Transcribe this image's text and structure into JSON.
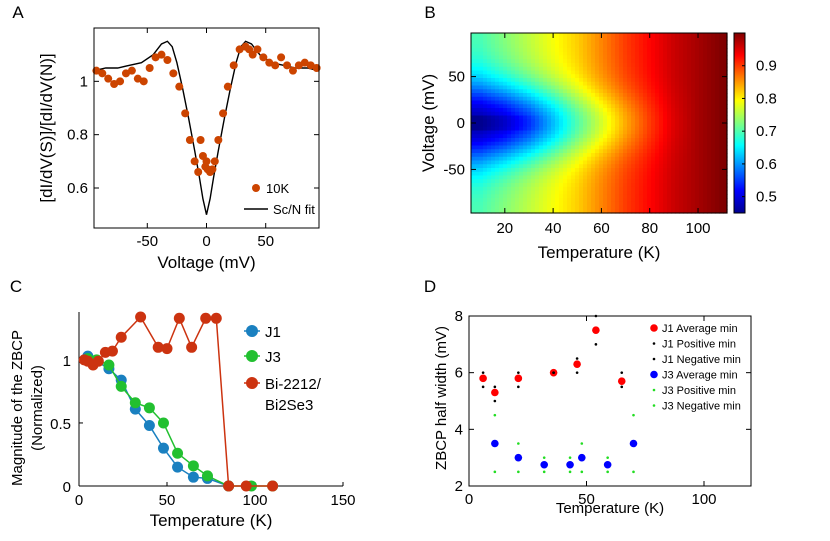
{
  "chart_data": [
    {
      "panel": "A",
      "type": "scatter",
      "xlabel": "Voltage (mV)",
      "ylabel": "[dI/dV(S)]/[dI/dV(N)]",
      "xlim": [
        -95,
        95
      ],
      "ylim": [
        0.45,
        1.2
      ],
      "xticks": [
        -50,
        0,
        50
      ],
      "yticks": [
        0.6,
        0.8,
        1
      ],
      "xtick_labels": [
        "-50",
        "0",
        "50"
      ],
      "ytick_labels": [
        "0.6",
        "0.8",
        "1"
      ],
      "colors": {
        "data": "#cc4400",
        "fit": "#000000"
      },
      "series": [
        {
          "name": "10K",
          "style": "markers",
          "x": [
            -93,
            -88,
            -83,
            -78,
            -73,
            -68,
            -63,
            -58,
            -53,
            -48,
            -43,
            -38,
            -33,
            -28,
            -23,
            -18,
            -14,
            -10,
            -7,
            -5,
            -3,
            -1,
            0,
            1,
            3,
            5,
            7,
            10,
            14,
            18,
            23,
            28,
            33,
            36,
            39,
            43,
            48,
            53,
            58,
            63,
            68,
            73,
            78,
            83,
            88,
            93
          ],
          "y": [
            1.04,
            1.03,
            1.01,
            0.99,
            1.0,
            1.03,
            1.04,
            1.01,
            1.0,
            1.05,
            1.09,
            1.1,
            1.08,
            1.03,
            0.98,
            0.88,
            0.78,
            0.7,
            0.66,
            0.78,
            0.72,
            0.68,
            0.7,
            0.67,
            0.66,
            0.67,
            0.7,
            0.78,
            0.88,
            0.98,
            1.06,
            1.12,
            1.13,
            1.12,
            1.1,
            1.12,
            1.09,
            1.07,
            1.06,
            1.09,
            1.06,
            1.04,
            1.06,
            1.07,
            1.06,
            1.05
          ]
        },
        {
          "name": "Sc/N fit",
          "style": "line",
          "x": [
            -95,
            -85,
            -75,
            -65,
            -55,
            -45,
            -38,
            -33,
            -29,
            -25,
            -20,
            -15,
            -10,
            -6,
            -3,
            0,
            3,
            6,
            10,
            15,
            20,
            25,
            29,
            33,
            38,
            45,
            55,
            65,
            75,
            85,
            95
          ],
          "y": [
            1.04,
            1.05,
            1.05,
            1.06,
            1.07,
            1.1,
            1.14,
            1.15,
            1.13,
            1.07,
            0.97,
            0.86,
            0.74,
            0.64,
            0.56,
            0.5,
            0.56,
            0.64,
            0.74,
            0.86,
            0.97,
            1.07,
            1.13,
            1.15,
            1.14,
            1.1,
            1.07,
            1.06,
            1.05,
            1.05,
            1.04
          ]
        }
      ],
      "legend_position": "bottom-right"
    },
    {
      "panel": "B",
      "type": "heatmap",
      "xlabel": "Temperature (K)",
      "ylabel": "Voltage (mV)",
      "xlim": [
        6,
        112
      ],
      "ylim": [
        -97,
        97
      ],
      "xticks": [
        20,
        40,
        60,
        80,
        100
      ],
      "yticks": [
        -50,
        0,
        50
      ],
      "xtick_labels": [
        "20",
        "40",
        "60",
        "80",
        "100"
      ],
      "ytick_labels": [
        "-50",
        "0",
        "50"
      ],
      "colorbar_range": [
        0.45,
        1.0
      ],
      "colorbar_ticks": [
        0.5,
        0.6,
        0.7,
        0.8,
        0.9
      ],
      "colorbar_tick_labels": [
        "0.5",
        "0.6",
        "0.7",
        "0.8",
        "0.9"
      ],
      "colormap": [
        "#00008f",
        "#0000ff",
        "#0080ff",
        "#00ffff",
        "#80ff80",
        "#ffff00",
        "#ff8000",
        "#ff0000",
        "#800000"
      ],
      "temperatures": [
        10,
        20,
        30,
        40,
        50,
        60,
        70,
        80,
        90,
        100,
        110
      ],
      "center_minimum": [
        0.47,
        0.5,
        0.55,
        0.62,
        0.7,
        0.77,
        0.84,
        0.9,
        0.95,
        0.98,
        1.0
      ],
      "edge_value": [
        0.7,
        0.73,
        0.76,
        0.79,
        0.82,
        0.86,
        0.9,
        0.93,
        0.96,
        0.98,
        1.0
      ]
    },
    {
      "panel": "C",
      "type": "line",
      "xlabel": "Temperature (K)",
      "ylabel": "Magnitude of the ZBCP (Normalized)",
      "ylabel_lines": [
        "Magnitude of the ZBCP",
        "(Normalized)"
      ],
      "xlim": [
        0,
        150
      ],
      "ylim": [
        0,
        1.38
      ],
      "xticks": [
        0,
        50,
        100,
        150
      ],
      "yticks": [
        0,
        0.5,
        1
      ],
      "xtick_labels": [
        "0",
        "50",
        "100",
        "150"
      ],
      "ytick_labels": [
        "0",
        "0.5",
        "1"
      ],
      "series": [
        {
          "name": "J1",
          "color": "#1a80c0",
          "x": [
            5,
            10,
            17,
            24,
            32,
            40,
            48,
            56,
            65,
            73,
            85
          ],
          "y": [
            1.03,
            0.99,
            0.93,
            0.84,
            0.61,
            0.48,
            0.3,
            0.15,
            0.07,
            0.06,
            0.0
          ]
        },
        {
          "name": "J3",
          "color": "#22c030",
          "x": [
            5,
            10,
            17,
            24,
            32,
            40,
            48,
            56,
            65,
            73,
            85,
            98,
            110
          ],
          "y": [
            1.01,
            1.0,
            0.96,
            0.79,
            0.66,
            0.62,
            0.5,
            0.26,
            0.16,
            0.08,
            0.0,
            0.0,
            0.0
          ]
        },
        {
          "name": "Bi-2212/\nBi2Se3",
          "legend_lines": [
            "Bi-2212/",
            "Bi2Se3"
          ],
          "color": "#cc3310",
          "x": [
            3,
            5,
            8,
            11,
            15,
            19,
            24,
            35,
            45,
            50,
            57,
            64,
            72,
            78,
            85,
            95,
            110
          ],
          "y": [
            1.0,
            0.99,
            0.96,
            0.99,
            1.06,
            1.07,
            1.18,
            1.34,
            1.1,
            1.09,
            1.33,
            1.1,
            1.33,
            1.33,
            0.0,
            0.0,
            0.0
          ]
        }
      ]
    },
    {
      "panel": "D",
      "type": "scatter",
      "xlabel": "Temperature (K)",
      "ylabel": "ZBCP half width (mV)",
      "xlim": [
        0,
        120
      ],
      "ylim": [
        2,
        8
      ],
      "xticks": [
        0,
        50,
        100
      ],
      "yticks": [
        2,
        4,
        6,
        8
      ],
      "xtick_labels": [
        "0",
        "50",
        "100"
      ],
      "ytick_labels": [
        "2",
        "4",
        "6",
        "8"
      ],
      "series": [
        {
          "name": "J1 Average min",
          "color": "#ff0000",
          "marker": "big",
          "x": [
            6,
            11,
            21,
            36,
            46,
            54,
            65
          ],
          "y": [
            5.8,
            5.3,
            5.8,
            6.0,
            6.3,
            7.5,
            5.7
          ]
        },
        {
          "name": "J1 Positive min",
          "color": "#000000",
          "marker": "small",
          "x": [
            6,
            11,
            21,
            36,
            46,
            54,
            65
          ],
          "y": [
            6.0,
            5.5,
            6.0,
            6.0,
            6.5,
            8.0,
            6.0
          ]
        },
        {
          "name": "J1 Negative min",
          "color": "#000000",
          "marker": "small",
          "x": [
            6,
            11,
            21,
            36,
            46,
            54,
            65
          ],
          "y": [
            5.5,
            5.0,
            5.5,
            6.0,
            6.0,
            7.0,
            5.5
          ]
        },
        {
          "name": "J3 Average min",
          "color": "#0000ff",
          "marker": "big",
          "x": [
            11,
            21,
            32,
            43,
            48,
            59,
            70
          ],
          "y": [
            3.5,
            3.0,
            2.75,
            2.75,
            3.0,
            2.75,
            3.5
          ]
        },
        {
          "name": "J3 Positive min",
          "color": "#22dd22",
          "marker": "small",
          "x": [
            11,
            21,
            32,
            43,
            48,
            59,
            70
          ],
          "y": [
            4.5,
            3.5,
            3.0,
            3.0,
            3.5,
            3.0,
            4.5
          ]
        },
        {
          "name": "J3 Negative min",
          "color": "#22dd22",
          "marker": "small",
          "x": [
            11,
            21,
            32,
            43,
            48,
            59,
            70
          ],
          "y": [
            2.5,
            2.5,
            2.5,
            2.5,
            2.5,
            2.5,
            2.5
          ]
        }
      ],
      "legend_position": "top-right"
    }
  ]
}
